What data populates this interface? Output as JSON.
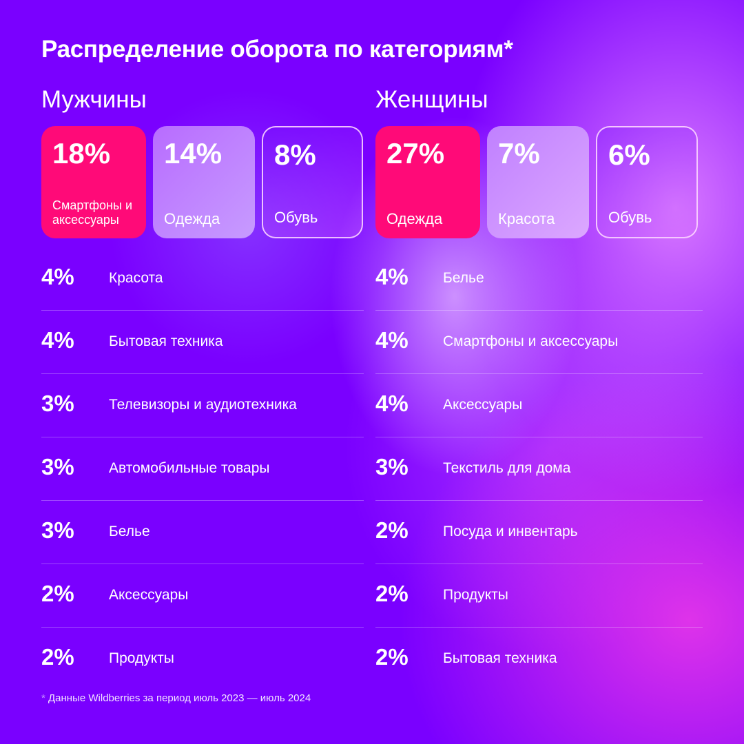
{
  "title": "Распределение оборота по категориям*",
  "men": {
    "heading": "Мужчины",
    "cards": [
      {
        "pct": "18%",
        "label": "Смартфоны и аксессуары"
      },
      {
        "pct": "14%",
        "label": "Одежда"
      },
      {
        "pct": "8%",
        "label": "Обувь"
      }
    ],
    "rows": [
      {
        "pct": "4%",
        "label": "Красота"
      },
      {
        "pct": "4%",
        "label": "Бытовая техника"
      },
      {
        "pct": "3%",
        "label": "Телевизоры и аудиотехника"
      },
      {
        "pct": "3%",
        "label": "Автомобильные товары"
      },
      {
        "pct": "3%",
        "label": "Белье"
      },
      {
        "pct": "2%",
        "label": "Аксессуары"
      },
      {
        "pct": "2%",
        "label": "Продукты"
      }
    ]
  },
  "women": {
    "heading": "Женщины",
    "cards": [
      {
        "pct": "27%",
        "label": "Одежда"
      },
      {
        "pct": "7%",
        "label": "Красота"
      },
      {
        "pct": "6%",
        "label": "Обувь"
      }
    ],
    "rows": [
      {
        "pct": "4%",
        "label": "Белье"
      },
      {
        "pct": "4%",
        "label": "Смартфоны и аксессуары"
      },
      {
        "pct": "4%",
        "label": "Аксессуары"
      },
      {
        "pct": "3%",
        "label": "Текстиль для дома"
      },
      {
        "pct": "2%",
        "label": "Посуда и инвентарь"
      },
      {
        "pct": "2%",
        "label": "Продукты"
      },
      {
        "pct": "2%",
        "label": "Бытовая техника"
      }
    ]
  },
  "footnote": {
    "mark": "*",
    "text": " Данные Wildberries за период июль 2023 — июль 2024"
  },
  "colors": {
    "background": "#7a00ff",
    "accent_pink": "#ff0a78",
    "lavender": "#b86cff"
  }
}
